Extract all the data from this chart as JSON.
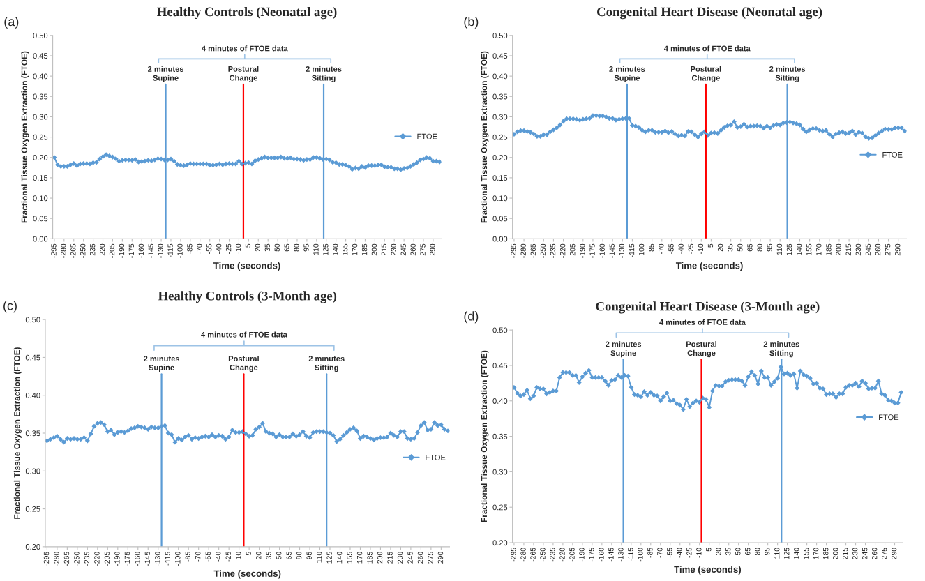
{
  "chart_data": [
    {
      "type": "line",
      "title": "Healthy Controls (Neonatal age)",
      "xlabel": "Time (seconds)",
      "ylabel": "Fractional Tissue Oxygen Extraction (FTOE)",
      "annotations": [
        "(a)",
        "4 minutes of FTOE data"
      ],
      "legend": "right",
      "marker": "diamond",
      "line_style": "solid",
      "x": [
        -295,
        -290,
        -285,
        -280,
        -275,
        -270,
        -265,
        -260,
        -255,
        -250,
        -245,
        -240,
        -235,
        -230,
        -225,
        -220,
        -215,
        -210,
        -205,
        -200,
        -195,
        -190,
        -185,
        -180,
        -175,
        -170,
        -165,
        -160,
        -155,
        -150,
        -145,
        -140,
        -135,
        -130,
        -125,
        -120,
        -115,
        -110,
        -105,
        -100,
        -95,
        -90,
        -85,
        -80,
        -75,
        -70,
        -65,
        -60,
        -55,
        -50,
        -45,
        -40,
        -35,
        -30,
        -25,
        -20,
        -15,
        -10,
        -5,
        0,
        5,
        10,
        15,
        20,
        25,
        30,
        35,
        40,
        45,
        50,
        55,
        60,
        65,
        70,
        75,
        80,
        85,
        90,
        95,
        100,
        105,
        110,
        115,
        120,
        125,
        130,
        135,
        140,
        145,
        150,
        155,
        160,
        165,
        170,
        175,
        180,
        185,
        190,
        195,
        200,
        205,
        210,
        215,
        220,
        225,
        230,
        235,
        240,
        245,
        250,
        255,
        260,
        265,
        270,
        275,
        280,
        285,
        290,
        295,
        300
      ],
      "series": [
        {
          "name": "FTOE",
          "color": "#5b9bd5",
          "values": [
            0.2,
            0.182,
            0.178,
            0.178,
            0.178,
            0.182,
            0.185,
            0.18,
            0.184,
            0.185,
            0.185,
            0.184,
            0.187,
            0.188,
            0.196,
            0.202,
            0.207,
            0.204,
            0.201,
            0.197,
            0.191,
            0.193,
            0.194,
            0.194,
            0.193,
            0.195,
            0.189,
            0.19,
            0.191,
            0.193,
            0.192,
            0.194,
            0.197,
            0.196,
            0.194,
            0.194,
            0.196,
            0.191,
            0.183,
            0.181,
            0.18,
            0.182,
            0.185,
            0.184,
            0.184,
            0.184,
            0.184,
            0.184,
            0.181,
            0.181,
            0.182,
            0.184,
            0.182,
            0.184,
            0.185,
            0.184,
            0.184,
            0.191,
            0.184,
            0.186,
            0.187,
            0.184,
            0.192,
            0.195,
            0.198,
            0.201,
            0.199,
            0.199,
            0.199,
            0.199,
            0.201,
            0.198,
            0.198,
            0.199,
            0.196,
            0.196,
            0.195,
            0.193,
            0.195,
            0.195,
            0.2,
            0.2,
            0.198,
            0.195,
            0.196,
            0.194,
            0.188,
            0.187,
            0.183,
            0.183,
            0.181,
            0.178,
            0.171,
            0.174,
            0.172,
            0.178,
            0.175,
            0.18,
            0.18,
            0.18,
            0.181,
            0.182,
            0.177,
            0.176,
            0.176,
            0.172,
            0.172,
            0.17,
            0.173,
            0.174,
            0.178,
            0.183,
            0.187,
            0.194,
            0.196,
            0.2,
            0.198,
            0.191,
            0.191,
            0.189
          ]
        }
      ],
      "xlim": [
        -297.5,
        302.5
      ],
      "xticks": [
        -295,
        -280,
        -265,
        -250,
        -235,
        -220,
        -205,
        -190,
        -175,
        -160,
        -145,
        -130,
        -115,
        -100,
        -85,
        -70,
        -55,
        -40,
        -25,
        -10,
        5,
        20,
        35,
        50,
        65,
        80,
        95,
        110,
        125,
        140,
        155,
        170,
        185,
        200,
        215,
        230,
        245,
        260,
        275,
        290
      ],
      "ylim": [
        0,
        0.5
      ],
      "yticks": [
        {
          "value": 0,
          "label": "0.00"
        },
        {
          "value": 0.05,
          "label": "0.05"
        },
        {
          "value": 0.1,
          "label": "0.10"
        },
        0.15,
        {
          "value": 0.2,
          "label": "0.20"
        },
        0.25,
        {
          "value": 0.3,
          "label": "0.30"
        },
        0.35,
        {
          "value": 0.4,
          "label": "0.40"
        },
        0.45,
        {
          "value": 0.5,
          "label": "0.50"
        }
      ],
      "ref_lines": [
        {
          "axis": "x",
          "value": -123,
          "label": "2 minutes\nSupine",
          "color": "#5b9bd5"
        },
        {
          "axis": "x",
          "value": -3,
          "label": "Postural\nChange",
          "color": "#ff0000"
        },
        {
          "axis": "x",
          "value": 121,
          "label": "2 minutes\nSitting",
          "color": "#5b9bd5"
        }
      ]
    },
    {
      "type": "line",
      "title": "Congenital Heart Disease (Neonatal age)",
      "xlabel": "Time (seconds)",
      "ylabel": "Fractional Tissue Oxygen Extraction (FTOE)",
      "annotations": [
        "(b)",
        "4 minutes of FTOE data"
      ],
      "legend": "right",
      "marker": "diamond",
      "line_style": "solid",
      "x": [
        -295,
        -290,
        -285,
        -280,
        -275,
        -270,
        -265,
        -260,
        -255,
        -250,
        -245,
        -240,
        -235,
        -230,
        -225,
        -220,
        -215,
        -210,
        -205,
        -200,
        -195,
        -190,
        -185,
        -180,
        -175,
        -170,
        -165,
        -160,
        -155,
        -150,
        -145,
        -140,
        -135,
        -130,
        -125,
        -120,
        -115,
        -110,
        -105,
        -100,
        -95,
        -90,
        -85,
        -80,
        -75,
        -70,
        -65,
        -60,
        -55,
        -50,
        -45,
        -40,
        -35,
        -30,
        -25,
        -20,
        -15,
        -10,
        -5,
        0,
        5,
        10,
        15,
        20,
        25,
        30,
        35,
        40,
        45,
        50,
        55,
        60,
        65,
        70,
        75,
        80,
        85,
        90,
        95,
        100,
        105,
        110,
        115,
        120,
        125,
        130,
        135,
        140,
        145,
        150,
        155,
        160,
        165,
        170,
        175,
        180,
        185,
        190,
        195,
        200,
        205,
        210,
        215,
        220,
        225,
        230,
        235,
        240,
        245,
        250,
        255,
        260,
        265,
        270,
        275,
        280,
        285,
        290,
        295,
        300
      ],
      "series": [
        {
          "name": "FTOE",
          "color": "#5b9bd5",
          "values": [
            0.257,
            0.263,
            0.266,
            0.266,
            0.264,
            0.262,
            0.258,
            0.252,
            0.252,
            0.256,
            0.256,
            0.263,
            0.268,
            0.273,
            0.28,
            0.289,
            0.295,
            0.295,
            0.295,
            0.294,
            0.292,
            0.294,
            0.295,
            0.296,
            0.303,
            0.303,
            0.302,
            0.302,
            0.3,
            0.296,
            0.296,
            0.292,
            0.294,
            0.295,
            0.296,
            0.296,
            0.279,
            0.277,
            0.274,
            0.267,
            0.263,
            0.267,
            0.267,
            0.262,
            0.262,
            0.262,
            0.265,
            0.261,
            0.264,
            0.258,
            0.253,
            0.255,
            0.253,
            0.264,
            0.263,
            0.256,
            0.25,
            0.258,
            0.263,
            0.254,
            0.26,
            0.261,
            0.259,
            0.267,
            0.274,
            0.278,
            0.28,
            0.288,
            0.274,
            0.276,
            0.282,
            0.275,
            0.277,
            0.277,
            0.278,
            0.277,
            0.272,
            0.277,
            0.273,
            0.279,
            0.281,
            0.28,
            0.285,
            0.286,
            0.287,
            0.285,
            0.283,
            0.28,
            0.27,
            0.263,
            0.268,
            0.271,
            0.271,
            0.267,
            0.265,
            0.267,
            0.257,
            0.25,
            0.258,
            0.261,
            0.263,
            0.259,
            0.26,
            0.265,
            0.256,
            0.262,
            0.26,
            0.251,
            0.247,
            0.248,
            0.254,
            0.26,
            0.265,
            0.27,
            0.269,
            0.269,
            0.273,
            0.273,
            0.273,
            0.265
          ]
        }
      ],
      "xlim": [
        -297.5,
        302.5
      ],
      "xticks": [
        -295,
        -280,
        -265,
        -250,
        -235,
        -220,
        -205,
        -190,
        -175,
        -160,
        -145,
        -130,
        -115,
        -100,
        -85,
        -70,
        -55,
        -40,
        -25,
        -10,
        5,
        20,
        35,
        50,
        65,
        80,
        95,
        110,
        125,
        140,
        155,
        170,
        185,
        200,
        215,
        230,
        245,
        260,
        275,
        290
      ],
      "ylim": [
        0,
        0.5
      ],
      "yticks": [
        {
          "value": 0,
          "label": "0.00"
        },
        {
          "value": 0.05,
          "label": "0.05"
        },
        {
          "value": 0.1,
          "label": "0.10"
        },
        0.15,
        {
          "value": 0.2,
          "label": "0.20"
        },
        0.25,
        {
          "value": 0.3,
          "label": "0.30"
        },
        0.35,
        {
          "value": 0.4,
          "label": "0.40"
        },
        0.45,
        {
          "value": 0.5,
          "label": "0.50"
        }
      ],
      "ref_lines": [
        {
          "axis": "x",
          "value": -123,
          "label": "2 minutes\nSupine",
          "color": "#5b9bd5"
        },
        {
          "axis": "x",
          "value": -3,
          "label": "Postural\nChange",
          "color": "#ff0000"
        },
        {
          "axis": "x",
          "value": 121,
          "label": "2 minutes\nSitting",
          "color": "#5b9bd5"
        }
      ]
    },
    {
      "type": "line",
      "title": "Healthy Controls (3-Month age)",
      "xlabel": "Time (seconds)",
      "ylabel": "Fractional Tissue Oxygen Extraction (FTOE)",
      "annotations": [
        "(c)",
        "4 minutes of FTOE data"
      ],
      "legend": "right",
      "marker": "diamond",
      "line_style": "solid",
      "x": [
        -295,
        -290,
        -285,
        -280,
        -275,
        -270,
        -265,
        -260,
        -255,
        -250,
        -245,
        -240,
        -235,
        -230,
        -225,
        -220,
        -215,
        -210,
        -205,
        -200,
        -195,
        -190,
        -185,
        -180,
        -175,
        -170,
        -165,
        -160,
        -155,
        -150,
        -145,
        -140,
        -135,
        -130,
        -125,
        -120,
        -115,
        -110,
        -105,
        -100,
        -95,
        -90,
        -85,
        -80,
        -75,
        -70,
        -65,
        -60,
        -55,
        -50,
        -45,
        -40,
        -35,
        -30,
        -25,
        -20,
        -15,
        -10,
        -5,
        0,
        5,
        10,
        15,
        20,
        25,
        30,
        35,
        40,
        45,
        50,
        55,
        60,
        65,
        70,
        75,
        80,
        85,
        90,
        95,
        100,
        105,
        110,
        115,
        120,
        125,
        130,
        135,
        140,
        145,
        150,
        155,
        160,
        165,
        170,
        175,
        180,
        185,
        190,
        195,
        200,
        205,
        210,
        215,
        220,
        225,
        230,
        235,
        240,
        245,
        250,
        255,
        260,
        265,
        270,
        275,
        280,
        285,
        290,
        295,
        300
      ],
      "series": [
        {
          "name": "FTOE",
          "color": "#5b9bd5",
          "values": [
            0.34,
            0.342,
            0.344,
            0.346,
            0.342,
            0.338,
            0.343,
            0.342,
            0.343,
            0.342,
            0.342,
            0.344,
            0.34,
            0.349,
            0.359,
            0.363,
            0.364,
            0.361,
            0.352,
            0.354,
            0.348,
            0.351,
            0.352,
            0.351,
            0.353,
            0.356,
            0.357,
            0.359,
            0.358,
            0.357,
            0.355,
            0.358,
            0.357,
            0.357,
            0.359,
            0.36,
            0.35,
            0.348,
            0.338,
            0.343,
            0.341,
            0.345,
            0.347,
            0.342,
            0.344,
            0.343,
            0.345,
            0.346,
            0.345,
            0.348,
            0.345,
            0.347,
            0.346,
            0.342,
            0.345,
            0.354,
            0.351,
            0.351,
            0.352,
            0.349,
            0.346,
            0.347,
            0.355,
            0.358,
            0.363,
            0.352,
            0.35,
            0.349,
            0.345,
            0.348,
            0.345,
            0.345,
            0.345,
            0.349,
            0.346,
            0.348,
            0.352,
            0.346,
            0.344,
            0.351,
            0.352,
            0.352,
            0.352,
            0.351,
            0.35,
            0.347,
            0.339,
            0.342,
            0.347,
            0.351,
            0.355,
            0.357,
            0.353,
            0.343,
            0.346,
            0.345,
            0.343,
            0.341,
            0.343,
            0.344,
            0.344,
            0.345,
            0.35,
            0.347,
            0.345,
            0.352,
            0.352,
            0.343,
            0.342,
            0.343,
            0.351,
            0.36,
            0.364,
            0.354,
            0.355,
            0.364,
            0.36,
            0.361,
            0.355,
            0.353
          ]
        }
      ],
      "xlim": [
        -297.5,
        302.5
      ],
      "xticks": [
        -295,
        -280,
        -265,
        -250,
        -235,
        -220,
        -205,
        -190,
        -175,
        -160,
        -145,
        -130,
        -115,
        -100,
        -85,
        -70,
        -55,
        -40,
        -25,
        -10,
        5,
        20,
        35,
        50,
        65,
        80,
        95,
        110,
        125,
        140,
        155,
        170,
        185,
        200,
        215,
        230,
        245,
        260,
        275,
        290
      ],
      "ylim": [
        0.2,
        0.5
      ],
      "yticks": [
        {
          "value": 0.2,
          "label": "0.20"
        },
        0.25,
        {
          "value": 0.3,
          "label": "0.30"
        },
        0.35,
        {
          "value": 0.4,
          "label": "0.40"
        },
        0.45,
        {
          "value": 0.5,
          "label": "0.50"
        }
      ],
      "ref_lines": [
        {
          "axis": "x",
          "value": -125,
          "label": "2 minutes\nSupine",
          "color": "#5b9bd5"
        },
        {
          "axis": "x",
          "value": -3,
          "label": "Postural\nChange",
          "color": "#ff0000"
        },
        {
          "axis": "x",
          "value": 120,
          "label": "2 minutes\nSitting",
          "color": "#5b9bd5"
        }
      ]
    },
    {
      "type": "line",
      "title": "Congenital Heart Disease (3-Month age)",
      "xlabel": "Time (seconds)",
      "ylabel": "Fractional Tissue Oxygen Extraction (FTOE)",
      "annotations": [
        "(d)",
        "4 minutes of FTOE data"
      ],
      "legend": "right",
      "marker": "diamond",
      "line_style": "solid",
      "x": [
        -295,
        -290,
        -285,
        -280,
        -275,
        -270,
        -265,
        -260,
        -255,
        -250,
        -245,
        -240,
        -235,
        -230,
        -225,
        -220,
        -215,
        -210,
        -205,
        -200,
        -195,
        -190,
        -185,
        -180,
        -175,
        -170,
        -165,
        -160,
        -155,
        -150,
        -145,
        -140,
        -135,
        -130,
        -125,
        -120,
        -115,
        -110,
        -105,
        -100,
        -95,
        -90,
        -85,
        -80,
        -75,
        -70,
        -65,
        -60,
        -55,
        -50,
        -45,
        -40,
        -35,
        -30,
        -25,
        -20,
        -15,
        -10,
        -5,
        0,
        5,
        10,
        15,
        20,
        25,
        30,
        35,
        40,
        45,
        50,
        55,
        60,
        65,
        70,
        75,
        80,
        85,
        90,
        95,
        100,
        105,
        110,
        115,
        120,
        125,
        130,
        135,
        140,
        145,
        150,
        155,
        160,
        165,
        170,
        175,
        180,
        185,
        190,
        195,
        200,
        205,
        210,
        215,
        220,
        225,
        230,
        235,
        240,
        245,
        250,
        255,
        260,
        265,
        270,
        275,
        280,
        285,
        290,
        295,
        300
      ],
      "series": [
        {
          "name": "FTOE",
          "color": "#5b9bd5",
          "values": [
            0.419,
            0.411,
            0.407,
            0.409,
            0.415,
            0.403,
            0.407,
            0.419,
            0.417,
            0.417,
            0.41,
            0.412,
            0.414,
            0.414,
            0.433,
            0.44,
            0.44,
            0.44,
            0.436,
            0.436,
            0.426,
            0.434,
            0.439,
            0.443,
            0.433,
            0.433,
            0.433,
            0.433,
            0.428,
            0.422,
            0.429,
            0.43,
            0.436,
            0.433,
            0.436,
            0.435,
            0.419,
            0.409,
            0.408,
            0.406,
            0.413,
            0.408,
            0.412,
            0.408,
            0.407,
            0.4,
            0.406,
            0.411,
            0.4,
            0.401,
            0.396,
            0.394,
            0.388,
            0.402,
            0.392,
            0.397,
            0.4,
            0.398,
            0.404,
            0.402,
            0.391,
            0.414,
            0.422,
            0.421,
            0.421,
            0.427,
            0.429,
            0.43,
            0.43,
            0.43,
            0.428,
            0.422,
            0.434,
            0.441,
            0.436,
            0.424,
            0.442,
            0.433,
            0.433,
            0.422,
            0.427,
            0.432,
            0.448,
            0.438,
            0.439,
            0.436,
            0.438,
            0.418,
            0.442,
            0.437,
            0.435,
            0.432,
            0.424,
            0.425,
            0.418,
            0.417,
            0.409,
            0.41,
            0.41,
            0.405,
            0.41,
            0.41,
            0.419,
            0.422,
            0.422,
            0.425,
            0.42,
            0.428,
            0.425,
            0.417,
            0.418,
            0.418,
            0.428,
            0.41,
            0.408,
            0.401,
            0.4,
            0.397,
            0.397,
            0.412
          ]
        }
      ],
      "xlim": [
        -297.5,
        302.5
      ],
      "xticks": [
        -295,
        -280,
        -265,
        -250,
        -235,
        -220,
        -205,
        -190,
        -175,
        -160,
        -145,
        -130,
        -115,
        -100,
        -85,
        -70,
        -55,
        -40,
        -25,
        -10,
        5,
        20,
        35,
        50,
        65,
        80,
        95,
        110,
        125,
        140,
        155,
        170,
        185,
        200,
        215,
        230,
        245,
        260,
        275,
        290
      ],
      "ylim": [
        0.2,
        0.5
      ],
      "yticks": [
        {
          "value": 0.2,
          "label": "0.20"
        },
        0.25,
        {
          "value": 0.3,
          "label": "0.30"
        },
        0.35,
        {
          "value": 0.4,
          "label": "0.40"
        },
        0.45,
        {
          "value": 0.5,
          "label": "0.50"
        }
      ],
      "ref_lines": [
        {
          "axis": "x",
          "value": -127,
          "label": "2 minutes\nSupine",
          "color": "#5b9bd5"
        },
        {
          "axis": "x",
          "value": -7,
          "label": "Postural\nChange",
          "color": "#ff0000"
        },
        {
          "axis": "x",
          "value": 116,
          "label": "2 minutes\nSitting",
          "color": "#5b9bd5"
        }
      ]
    }
  ]
}
